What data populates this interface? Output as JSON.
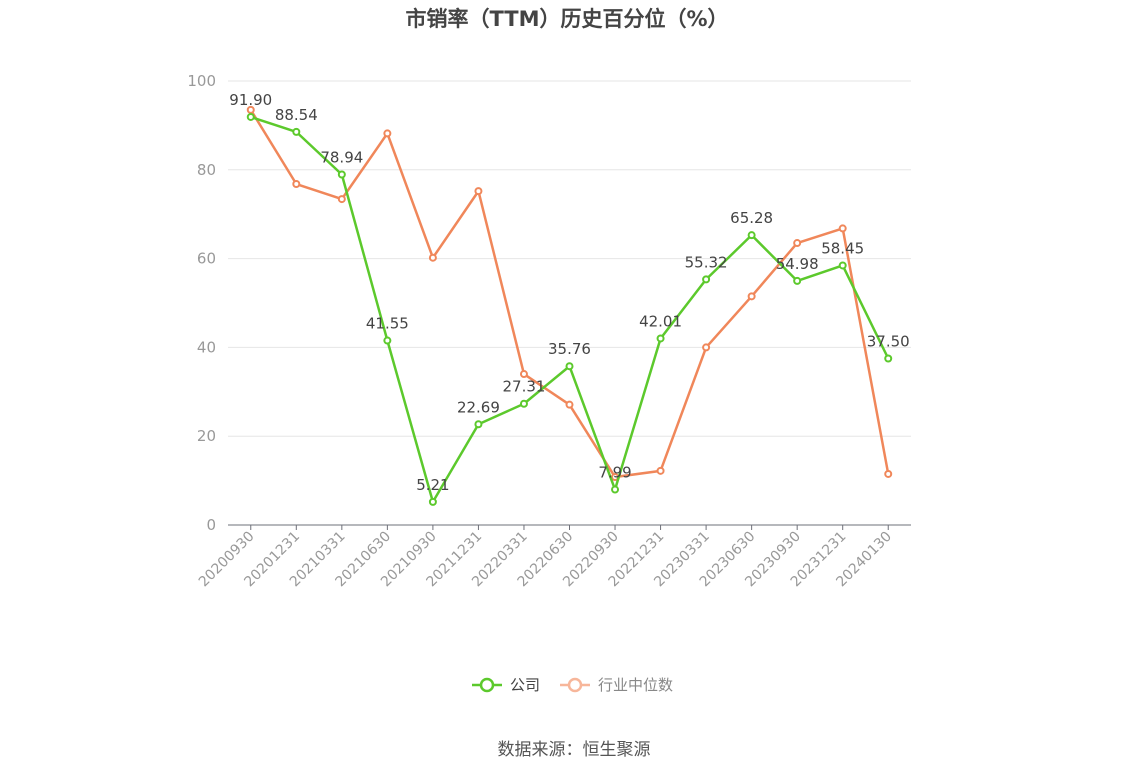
{
  "chart_data": {
    "type": "line",
    "title": "市销率（TTM）历史百分位（%）",
    "categories": [
      "20200930",
      "20201231",
      "20210331",
      "20210630",
      "20210930",
      "20211231",
      "20220331",
      "20220630",
      "20220930",
      "20221231",
      "20230331",
      "20230630",
      "20230930",
      "20231231",
      "20240130"
    ],
    "ylim": [
      0,
      100
    ],
    "yticks": [
      0,
      20,
      40,
      60,
      80,
      100
    ],
    "grid": true,
    "legend_position": "bottom",
    "series": [
      {
        "name": "公司",
        "color": "#5cc92c",
        "values": [
          91.9,
          88.54,
          78.94,
          41.55,
          5.21,
          22.69,
          27.31,
          35.76,
          7.99,
          42.01,
          55.32,
          65.28,
          54.98,
          58.45,
          37.5
        ],
        "labels": [
          "91.90",
          "88.54",
          "78.94",
          "41.55",
          "5.21",
          "22.69",
          "27.31",
          "35.76",
          "7.99",
          "42.01",
          "55.32",
          "65.28",
          "54.98",
          "58.45",
          "37.50"
        ]
      },
      {
        "name": "行业中位数",
        "color": "#f0875a",
        "values": [
          93.5,
          76.8,
          73.4,
          88.2,
          60.2,
          75.2,
          34.0,
          27.1,
          10.8,
          12.2,
          40.0,
          51.5,
          63.5,
          66.8,
          11.5
        ]
      }
    ]
  },
  "source_text": "数据来源：恒生聚源"
}
